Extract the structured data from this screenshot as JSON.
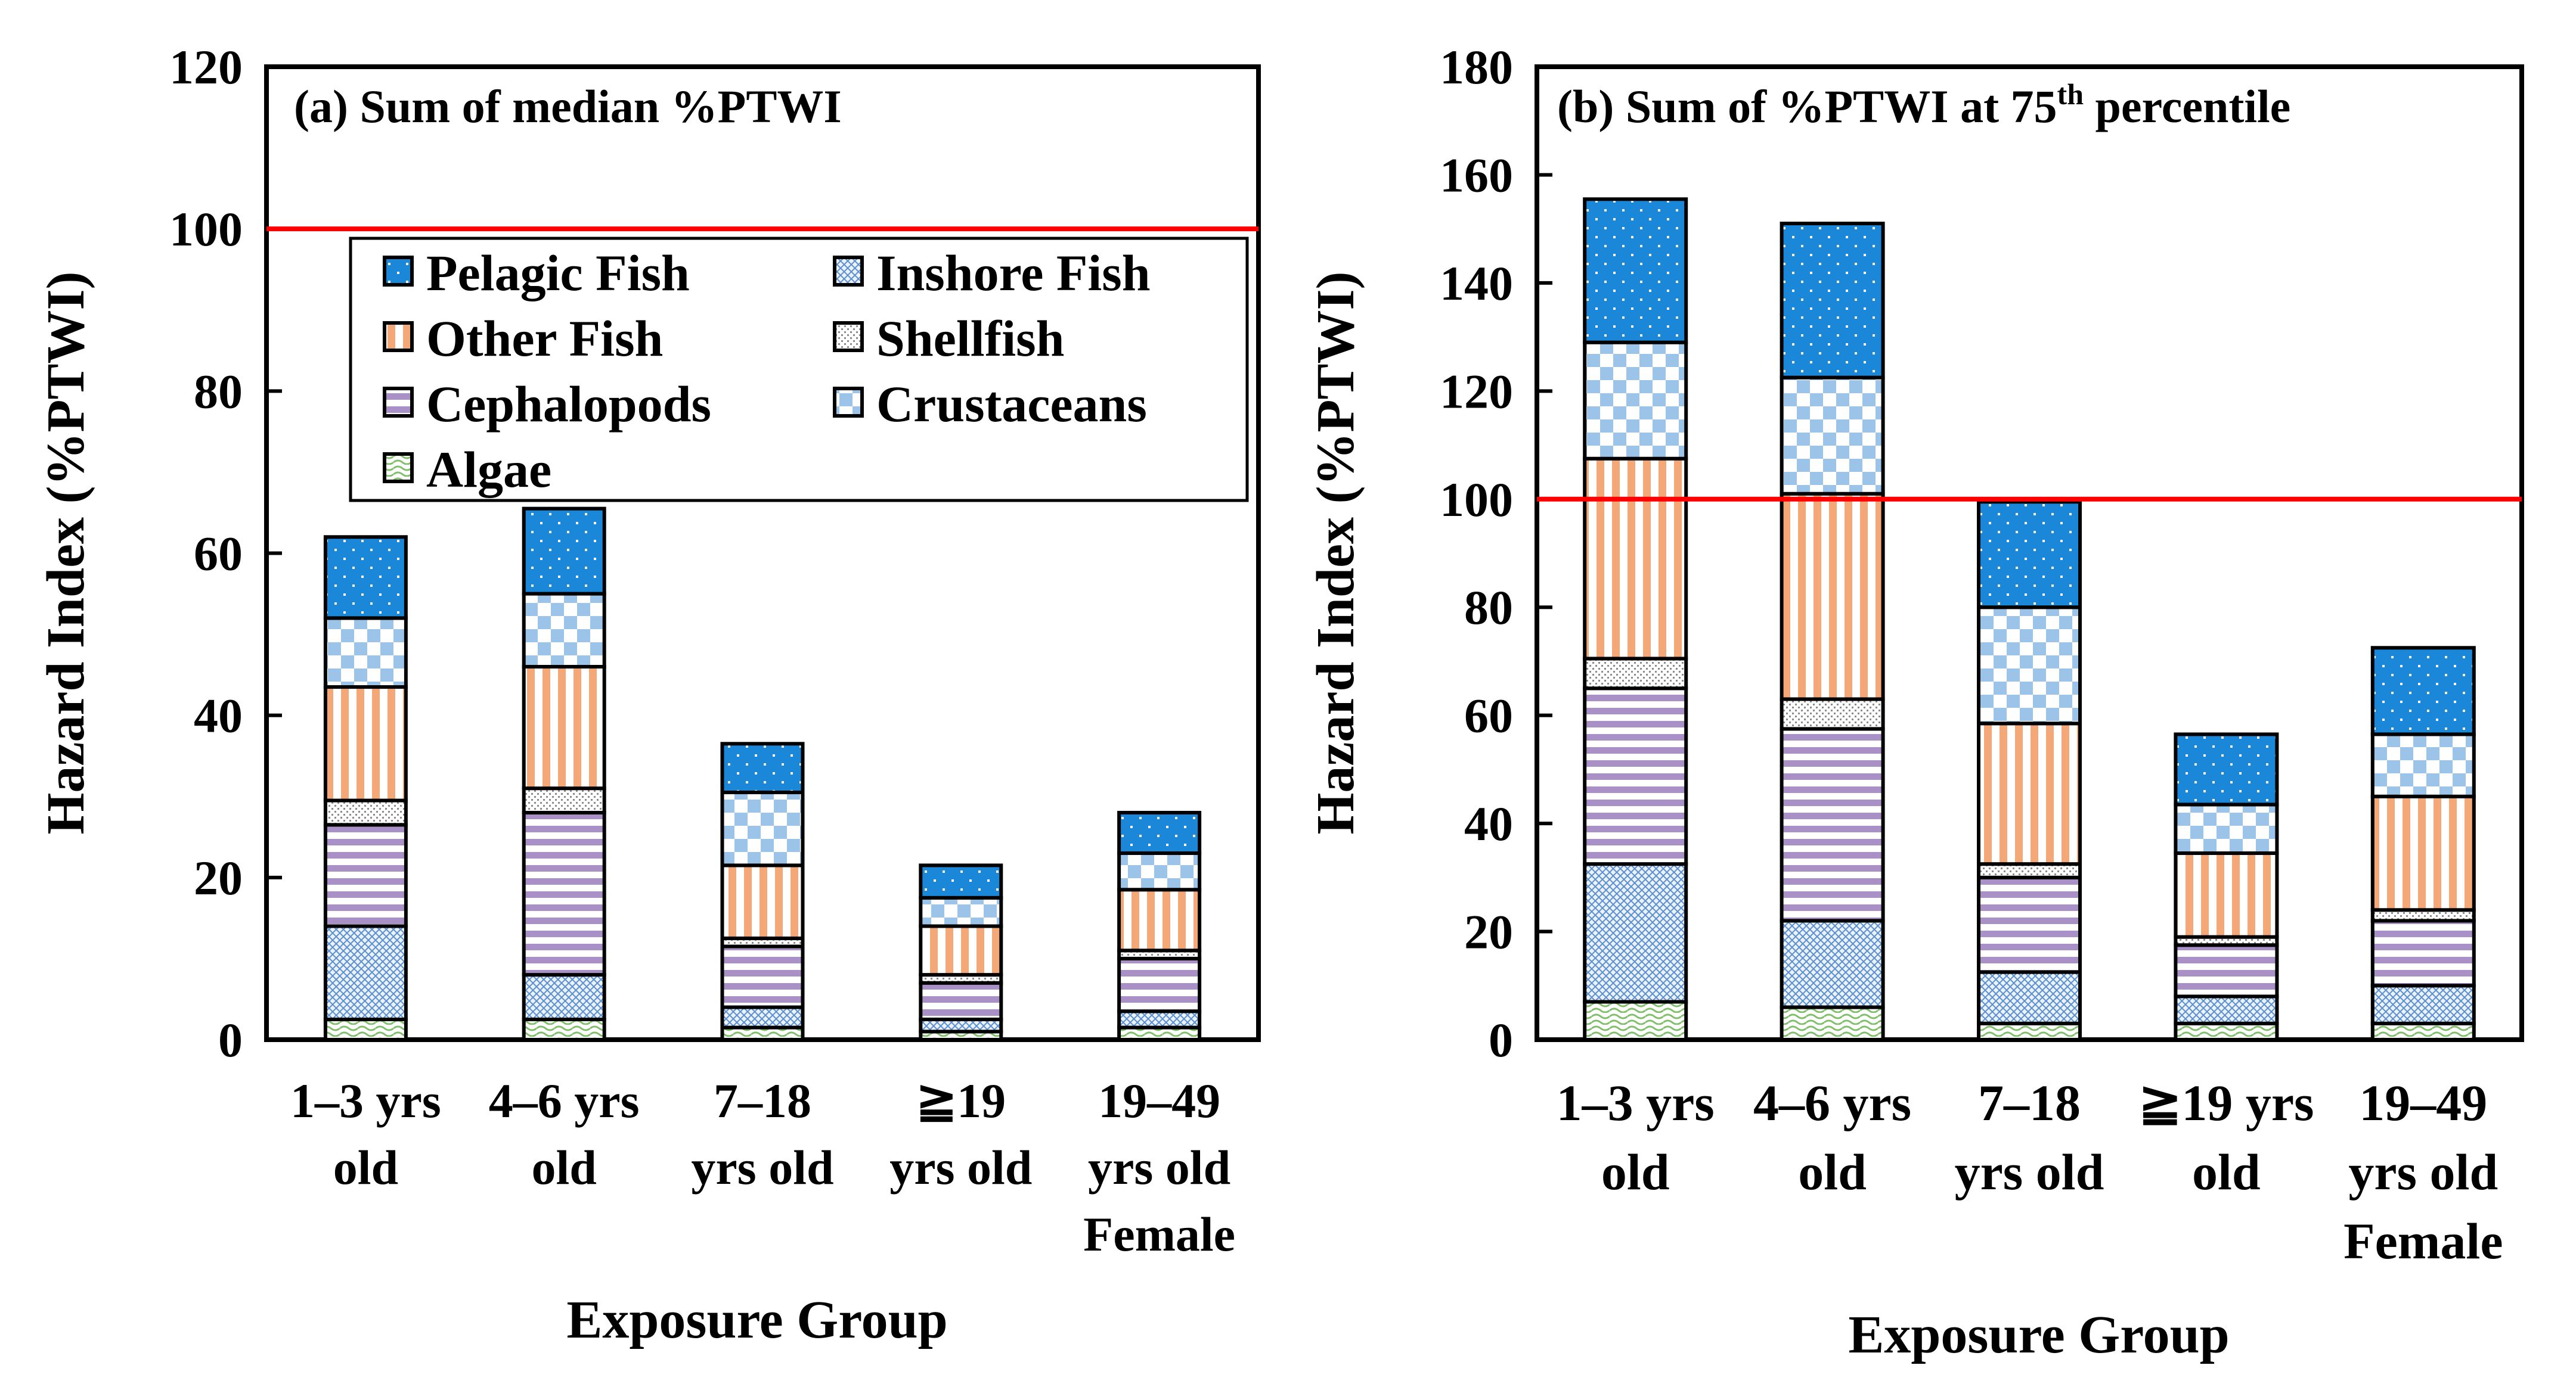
{
  "colors": {
    "pelagic": "#1a87d8",
    "inshore_line": "#5b8fd0",
    "other": "#f4a878",
    "shellfish": "#9e9e9e",
    "cephalopods": "#a990c6",
    "crustaceans": "#9cc3e8",
    "algae": "#7fbf6a",
    "threshold": "#ff0000"
  },
  "legend": [
    {
      "key": "pelagic",
      "label": "Pelagic Fish"
    },
    {
      "key": "inshore",
      "label": "Inshore Fish"
    },
    {
      "key": "other",
      "label": "Other Fish"
    },
    {
      "key": "shellfish",
      "label": "Shellfish"
    },
    {
      "key": "cephalopods",
      "label": "Cephalopods"
    },
    {
      "key": "crustaceans",
      "label": "Crustaceans"
    },
    {
      "key": "algae",
      "label": "Algae"
    }
  ],
  "chart_data": [
    {
      "type": "bar",
      "stacked": true,
      "title": "(a) Sum of median %PTWI",
      "xlabel": "Exposure Group",
      "ylabel": "Hazard Index (%PTWI)",
      "ylim": [
        0,
        120
      ],
      "yticks": [
        0,
        20,
        40,
        60,
        80,
        100,
        120
      ],
      "threshold": 100,
      "categories": [
        [
          "1–3 yrs",
          "old"
        ],
        [
          "4–6 yrs",
          "old"
        ],
        [
          "7–18",
          "yrs old"
        ],
        [
          "≧19",
          "yrs old"
        ],
        [
          "19–49",
          "yrs old",
          "Female"
        ]
      ],
      "series": [
        {
          "key": "algae",
          "name": "Algae",
          "values": [
            2.5,
            2.5,
            1.5,
            1.0,
            1.5
          ]
        },
        {
          "key": "inshore",
          "name": "Inshore Fish",
          "values": [
            11.5,
            5.5,
            2.5,
            1.5,
            2.0
          ]
        },
        {
          "key": "cephalopods",
          "name": "Cephalopods",
          "values": [
            12.5,
            20.0,
            7.5,
            4.5,
            6.5
          ]
        },
        {
          "key": "shellfish",
          "name": "Shellfish",
          "values": [
            3.0,
            3.0,
            1.0,
            1.0,
            1.0
          ]
        },
        {
          "key": "other",
          "name": "Other Fish",
          "values": [
            14.0,
            15.0,
            9.0,
            6.0,
            7.5
          ]
        },
        {
          "key": "crustaceans",
          "name": "Crustaceans",
          "values": [
            8.5,
            9.0,
            9.0,
            3.5,
            4.5
          ]
        },
        {
          "key": "pelagic",
          "name": "Pelagic Fish",
          "values": [
            10.0,
            10.5,
            6.0,
            4.0,
            5.0
          ]
        }
      ]
    },
    {
      "type": "bar",
      "stacked": true,
      "title": "(b) Sum of %PTWI at 75",
      "title_sup": "th",
      "title_end": " percentile",
      "xlabel": "Exposure Group",
      "ylabel": "Hazard Index (%PTWI)",
      "ylim": [
        0,
        180
      ],
      "yticks": [
        0,
        20,
        40,
        60,
        80,
        100,
        120,
        140,
        160,
        180
      ],
      "threshold": 100,
      "categories": [
        [
          "1–3 yrs",
          "old"
        ],
        [
          "4–6 yrs",
          "old"
        ],
        [
          "7–18",
          "yrs old"
        ],
        [
          "≧19 yrs",
          "old"
        ],
        [
          "19–49",
          "yrs old",
          "Female"
        ]
      ],
      "series": [
        {
          "key": "algae",
          "name": "Algae",
          "values": [
            7,
            6,
            3,
            3,
            3
          ]
        },
        {
          "key": "inshore",
          "name": "Inshore Fish",
          "values": [
            25.5,
            16,
            9.5,
            5,
            7
          ]
        },
        {
          "key": "cephalopods",
          "name": "Cephalopods",
          "values": [
            32.5,
            35.5,
            17.5,
            9.5,
            12
          ]
        },
        {
          "key": "shellfish",
          "name": "Shellfish",
          "values": [
            5.5,
            5.5,
            2.5,
            1.5,
            2
          ]
        },
        {
          "key": "other",
          "name": "Other Fish",
          "values": [
            37,
            38,
            26,
            15.5,
            21
          ]
        },
        {
          "key": "crustaceans",
          "name": "Crustaceans",
          "values": [
            21.5,
            21.5,
            21.5,
            9,
            11.5
          ]
        },
        {
          "key": "pelagic",
          "name": "Pelagic Fish",
          "values": [
            26.5,
            28.5,
            19.5,
            13,
            16
          ]
        }
      ]
    }
  ]
}
